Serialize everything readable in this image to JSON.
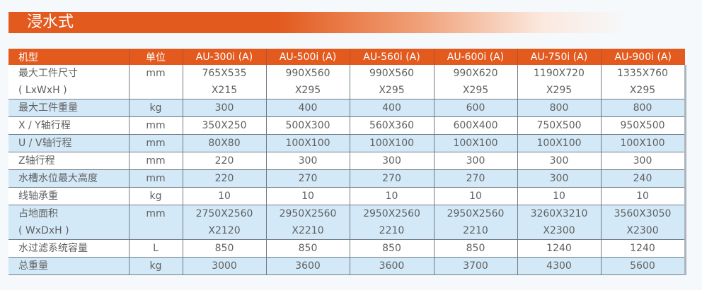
{
  "title": "浸水式",
  "header": [
    "机型",
    "单位",
    "AU-300i (A)",
    "AU-500i (A)",
    "AU-560i (A)",
    "AU-600i (A)",
    "AU-750i (A)",
    "AU-900i (A)"
  ],
  "rows": [
    {
      "label": [
        "最大工件尺寸",
        "( LxWxH )"
      ],
      "unit": "mm",
      "values": [
        [
          "765X535",
          "X215"
        ],
        [
          "990X560",
          "X295"
        ],
        [
          "990X560",
          "X295"
        ],
        [
          "990X620",
          "X295"
        ],
        [
          "1190X720",
          "X295"
        ],
        [
          "1335X760",
          "X295"
        ]
      ]
    },
    {
      "label": [
        "最大工件重量"
      ],
      "unit": "kg",
      "values": [
        [
          "300"
        ],
        [
          "400"
        ],
        [
          "400"
        ],
        [
          "600"
        ],
        [
          "800"
        ],
        [
          "800"
        ]
      ]
    },
    {
      "label": [
        "X / Y轴行程"
      ],
      "unit": "mm",
      "values": [
        [
          "350X250"
        ],
        [
          "500X300"
        ],
        [
          "560X360"
        ],
        [
          "600X400"
        ],
        [
          "750X500"
        ],
        [
          "950X500"
        ]
      ]
    },
    {
      "label": [
        "U / V轴行程"
      ],
      "unit": "mm",
      "values": [
        [
          "80X80"
        ],
        [
          "100X100"
        ],
        [
          "100X100"
        ],
        [
          "100X100"
        ],
        [
          "100X100"
        ],
        [
          "100X100"
        ]
      ]
    },
    {
      "label": [
        "Z轴行程"
      ],
      "unit": "mm",
      "values": [
        [
          "220"
        ],
        [
          "300"
        ],
        [
          "300"
        ],
        [
          "300"
        ],
        [
          "300"
        ],
        [
          "300"
        ]
      ]
    },
    {
      "label": [
        "水槽水位最大高度"
      ],
      "unit": "mm",
      "values": [
        [
          "220"
        ],
        [
          "270"
        ],
        [
          "270"
        ],
        [
          "270"
        ],
        [
          "300"
        ],
        [
          "240"
        ]
      ]
    },
    {
      "label": [
        "线轴承重"
      ],
      "unit": "kg",
      "values": [
        [
          "10"
        ],
        [
          "10"
        ],
        [
          "10"
        ],
        [
          "10"
        ],
        [
          "10"
        ],
        [
          "10"
        ]
      ]
    },
    {
      "label": [
        "占地面积",
        "( WxDxH )"
      ],
      "unit": "mm",
      "values": [
        [
          "2750X2560",
          "X2120"
        ],
        [
          "2950X2560",
          "X2210"
        ],
        [
          "2950X2560",
          "2210"
        ],
        [
          "2950X2560",
          "2210"
        ],
        [
          "3260X3210",
          "X2300"
        ],
        [
          "3560X3050",
          "X2300"
        ]
      ]
    },
    {
      "label": [
        "水过滤系统容量"
      ],
      "unit": "L",
      "values": [
        [
          "850"
        ],
        [
          "850"
        ],
        [
          "850"
        ],
        [
          "850"
        ],
        [
          "1240"
        ],
        [
          "1240"
        ]
      ]
    },
    {
      "label": [
        "总重量"
      ],
      "unit": "kg",
      "values": [
        [
          "3000"
        ],
        [
          "3600"
        ],
        [
          "3600"
        ],
        [
          "3700"
        ],
        [
          "4300"
        ],
        [
          "5600"
        ]
      ]
    }
  ]
}
